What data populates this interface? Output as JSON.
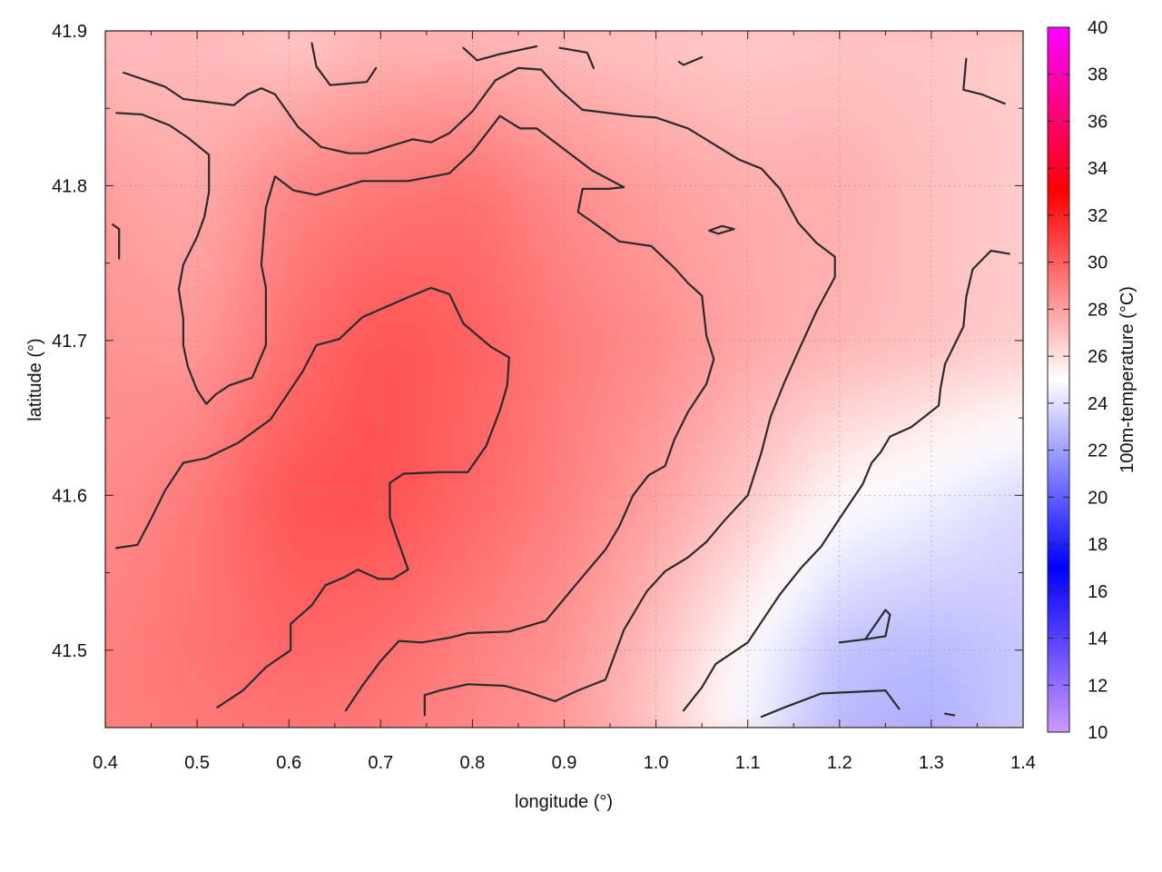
{
  "chart_data": {
    "type": "heatmap",
    "title": "",
    "xlabel": "longitude (°)",
    "ylabel": "latitude (°)",
    "colorbar_label": "100m-temperature (°C)",
    "xlim": [
      0.4,
      1.4
    ],
    "ylim": [
      41.45,
      41.9
    ],
    "x_ticks": [
      "0.4",
      "0.5",
      "0.6",
      "0.7",
      "0.8",
      "0.9",
      "1.0",
      "1.1",
      "1.2",
      "1.3",
      "1.4"
    ],
    "y_ticks": [
      "41.5",
      "41.6",
      "41.7",
      "41.8",
      "41.9"
    ],
    "color_ticks": [
      "10",
      "12",
      "14",
      "16",
      "18",
      "20",
      "22",
      "24",
      "26",
      "28",
      "30",
      "32",
      "34",
      "36",
      "38",
      "40"
    ],
    "color_range": [
      10,
      40
    ],
    "colorscale": [
      {
        "value": 10,
        "color": "#cc99ff"
      },
      {
        "value": 17,
        "color": "#0000ff"
      },
      {
        "value": 25,
        "color": "#ffffff"
      },
      {
        "value": 33,
        "color": "#ff0000"
      },
      {
        "value": 40,
        "color": "#ff00ff"
      }
    ],
    "grid": true,
    "contour_color": "#2b2b2b",
    "temperature_field": {
      "lon": [
        0.4,
        0.5,
        0.6,
        0.7,
        0.8,
        0.9,
        1.0,
        1.1,
        1.2,
        1.3,
        1.4
      ],
      "lat": [
        41.9,
        41.8,
        41.7,
        41.6,
        41.5,
        41.45
      ],
      "values": [
        [
          27.0,
          27.2,
          26.6,
          27.2,
          27.2,
          27.0,
          26.8,
          26.6,
          26.8,
          26.8,
          26.6
        ],
        [
          28.0,
          27.6,
          28.8,
          29.2,
          29.5,
          28.6,
          28.0,
          27.6,
          27.6,
          27.0,
          26.6
        ],
        [
          28.4,
          28.2,
          29.5,
          30.4,
          30.0,
          29.2,
          28.6,
          27.8,
          27.4,
          27.0,
          26.6
        ],
        [
          28.6,
          29.2,
          30.4,
          30.5,
          29.8,
          29.0,
          28.0,
          26.8,
          25.2,
          24.6,
          23.8
        ],
        [
          29.0,
          29.4,
          29.8,
          29.6,
          29.0,
          28.4,
          27.0,
          25.0,
          23.0,
          22.8,
          23.2
        ],
        [
          29.0,
          29.2,
          29.4,
          29.2,
          28.8,
          28.2,
          26.8,
          24.6,
          22.8,
          22.4,
          23.4
        ]
      ]
    },
    "contours": [
      [
        [
          0.42,
          41.873
        ],
        [
          0.465,
          41.864
        ],
        [
          0.485,
          41.856
        ],
        [
          0.54,
          41.852
        ],
        [
          0.555,
          41.859
        ],
        [
          0.57,
          41.863
        ],
        [
          0.585,
          41.859
        ],
        [
          0.61,
          41.838
        ],
        [
          0.635,
          41.825
        ],
        [
          0.665,
          41.821
        ],
        [
          0.685,
          41.821
        ],
        [
          0.735,
          41.83
        ],
        [
          0.755,
          41.828
        ],
        [
          0.775,
          41.834
        ],
        [
          0.8,
          41.848
        ],
        [
          0.825,
          41.868
        ],
        [
          0.85,
          41.876
        ],
        [
          0.875,
          41.875
        ],
        [
          0.895,
          41.862
        ],
        [
          0.92,
          41.849
        ],
        [
          0.975,
          41.845
        ],
        [
          1.0,
          41.844
        ],
        [
          1.035,
          41.837
        ],
        [
          1.09,
          41.817
        ],
        [
          1.115,
          41.811
        ],
        [
          1.135,
          41.798
        ],
        [
          1.155,
          41.776
        ],
        [
          1.175,
          41.763
        ],
        [
          1.195,
          41.754
        ],
        [
          1.195,
          41.741
        ],
        [
          1.175,
          41.719
        ],
        [
          1.155,
          41.693
        ],
        [
          1.14,
          41.673
        ],
        [
          1.125,
          41.651
        ],
        [
          1.115,
          41.628
        ],
        [
          1.1,
          41.6
        ],
        [
          1.075,
          41.584
        ],
        [
          1.055,
          41.57
        ],
        [
          1.035,
          41.56
        ],
        [
          1.01,
          41.551
        ],
        [
          0.99,
          41.538
        ],
        [
          0.965,
          41.513
        ],
        [
          0.945,
          41.481
        ],
        [
          0.915,
          41.474
        ],
        [
          0.89,
          41.467
        ],
        [
          0.86,
          41.473
        ],
        [
          0.835,
          41.477
        ],
        [
          0.795,
          41.478
        ],
        [
          0.765,
          41.474
        ],
        [
          0.748,
          41.471
        ],
        [
          0.748,
          41.458
        ]
      ],
      [
        [
          0.412,
          41.847
        ],
        [
          0.44,
          41.846
        ],
        [
          0.47,
          41.839
        ],
        [
          0.49,
          41.831
        ],
        [
          0.513,
          41.82
        ],
        [
          0.513,
          41.796
        ],
        [
          0.508,
          41.78
        ],
        [
          0.5,
          41.767
        ],
        [
          0.485,
          41.749
        ],
        [
          0.48,
          41.733
        ],
        [
          0.485,
          41.714
        ],
        [
          0.485,
          41.697
        ],
        [
          0.49,
          41.683
        ],
        [
          0.5,
          41.668
        ],
        [
          0.51,
          41.659
        ],
        [
          0.52,
          41.665
        ],
        [
          0.535,
          41.671
        ],
        [
          0.56,
          41.676
        ],
        [
          0.575,
          41.697
        ],
        [
          0.575,
          41.734
        ],
        [
          0.57,
          41.749
        ],
        [
          0.575,
          41.786
        ],
        [
          0.585,
          41.806
        ],
        [
          0.605,
          41.797
        ],
        [
          0.63,
          41.794
        ],
        [
          0.68,
          41.803
        ],
        [
          0.73,
          41.803
        ],
        [
          0.775,
          41.808
        ],
        [
          0.8,
          41.822
        ],
        [
          0.83,
          41.845
        ],
        [
          0.852,
          41.837
        ],
        [
          0.87,
          41.837
        ],
        [
          0.89,
          41.828
        ],
        [
          0.93,
          41.81
        ],
        [
          0.965,
          41.799
        ],
        [
          0.948,
          41.798
        ],
        [
          0.92,
          41.798
        ],
        [
          0.915,
          41.783
        ],
        [
          0.932,
          41.776
        ],
        [
          0.96,
          41.764
        ],
        [
          0.995,
          41.761
        ],
        [
          1.02,
          41.747
        ],
        [
          1.035,
          41.737
        ],
        [
          1.05,
          41.729
        ],
        [
          1.055,
          41.703
        ],
        [
          1.063,
          41.688
        ],
        [
          1.055,
          41.672
        ],
        [
          1.035,
          41.654
        ],
        [
          1.02,
          41.636
        ],
        [
          1.01,
          41.619
        ],
        [
          0.992,
          41.613
        ],
        [
          0.975,
          41.6
        ],
        [
          0.96,
          41.58
        ],
        [
          0.945,
          41.565
        ],
        [
          0.915,
          41.544
        ],
        [
          0.88,
          41.519
        ],
        [
          0.84,
          41.512
        ],
        [
          0.795,
          41.511
        ],
        [
          0.775,
          41.508
        ],
        [
          0.745,
          41.505
        ],
        [
          0.72,
          41.506
        ],
        [
          0.7,
          41.493
        ],
        [
          0.68,
          41.477
        ],
        [
          0.662,
          41.461
        ]
      ],
      [
        [
          0.412,
          41.566
        ],
        [
          0.435,
          41.568
        ],
        [
          0.45,
          41.585
        ],
        [
          0.465,
          41.603
        ],
        [
          0.485,
          41.621
        ],
        [
          0.51,
          41.624
        ],
        [
          0.545,
          41.634
        ],
        [
          0.58,
          41.649
        ],
        [
          0.615,
          41.68
        ],
        [
          0.63,
          41.697
        ],
        [
          0.655,
          41.701
        ],
        [
          0.68,
          41.715
        ],
        [
          0.73,
          41.728
        ],
        [
          0.755,
          41.734
        ],
        [
          0.775,
          41.73
        ],
        [
          0.79,
          41.711
        ],
        [
          0.82,
          41.696
        ],
        [
          0.84,
          41.689
        ],
        [
          0.838,
          41.671
        ],
        [
          0.83,
          41.655
        ],
        [
          0.815,
          41.632
        ],
        [
          0.795,
          41.615
        ],
        [
          0.765,
          41.615
        ],
        [
          0.725,
          41.614
        ],
        [
          0.71,
          41.608
        ],
        [
          0.71,
          41.586
        ],
        [
          0.718,
          41.572
        ],
        [
          0.73,
          41.552
        ],
        [
          0.713,
          41.546
        ],
        [
          0.698,
          41.546
        ],
        [
          0.675,
          41.552
        ],
        [
          0.66,
          41.547
        ],
        [
          0.64,
          41.542
        ],
        [
          0.625,
          41.529
        ],
        [
          0.602,
          41.517
        ],
        [
          0.602,
          41.5
        ],
        [
          0.575,
          41.489
        ],
        [
          0.55,
          41.474
        ],
        [
          0.522,
          41.463
        ]
      ],
      [
        [
          0.625,
          41.892
        ],
        [
          0.63,
          41.877
        ],
        [
          0.645,
          41.865
        ],
        [
          0.685,
          41.867
        ],
        [
          0.695,
          41.876
        ]
      ],
      [
        [
          0.79,
          41.889
        ],
        [
          0.805,
          41.881
        ],
        [
          0.83,
          41.885
        ],
        [
          0.87,
          41.89
        ]
      ],
      [
        [
          0.895,
          41.889
        ],
        [
          0.925,
          41.886
        ],
        [
          0.932,
          41.876
        ]
      ],
      [
        [
          1.025,
          41.88
        ],
        [
          1.03,
          41.878
        ],
        [
          1.05,
          41.883
        ]
      ],
      [
        [
          1.338,
          41.882
        ],
        [
          1.335,
          41.862
        ],
        [
          1.355,
          41.859
        ],
        [
          1.38,
          41.853
        ]
      ],
      [
        [
          1.385,
          41.756
        ],
        [
          1.365,
          41.758
        ],
        [
          1.345,
          41.746
        ],
        [
          1.338,
          41.728
        ],
        [
          1.335,
          41.709
        ],
        [
          1.315,
          41.685
        ],
        [
          1.31,
          41.669
        ],
        [
          1.308,
          41.658
        ],
        [
          1.278,
          41.644
        ],
        [
          1.255,
          41.638
        ],
        [
          1.245,
          41.628
        ],
        [
          1.235,
          41.621
        ],
        [
          1.225,
          41.607
        ],
        [
          1.2,
          41.585
        ],
        [
          1.18,
          41.567
        ],
        [
          1.158,
          41.553
        ],
        [
          1.135,
          41.536
        ],
        [
          1.1,
          41.505
        ],
        [
          1.065,
          41.491
        ],
        [
          1.05,
          41.476
        ],
        [
          1.03,
          41.461
        ]
      ],
      [
        [
          1.058,
          41.771
        ],
        [
          1.072,
          41.774
        ],
        [
          1.085,
          41.772
        ],
        [
          1.068,
          41.769
        ],
        [
          1.058,
          41.771
        ]
      ],
      [
        [
          1.2,
          41.505
        ],
        [
          1.228,
          41.507
        ],
        [
          1.25,
          41.509
        ],
        [
          1.255,
          41.523
        ],
        [
          1.25,
          41.526
        ],
        [
          1.228,
          41.507
        ]
      ],
      [
        [
          1.115,
          41.457
        ],
        [
          1.14,
          41.463
        ],
        [
          1.18,
          41.472
        ],
        [
          1.25,
          41.474
        ],
        [
          1.265,
          41.462
        ]
      ],
      [
        [
          1.315,
          41.459
        ],
        [
          1.325,
          41.458
        ]
      ],
      [
        [
          0.408,
          41.775
        ],
        [
          0.415,
          41.772
        ],
        [
          0.415,
          41.753
        ]
      ]
    ]
  }
}
